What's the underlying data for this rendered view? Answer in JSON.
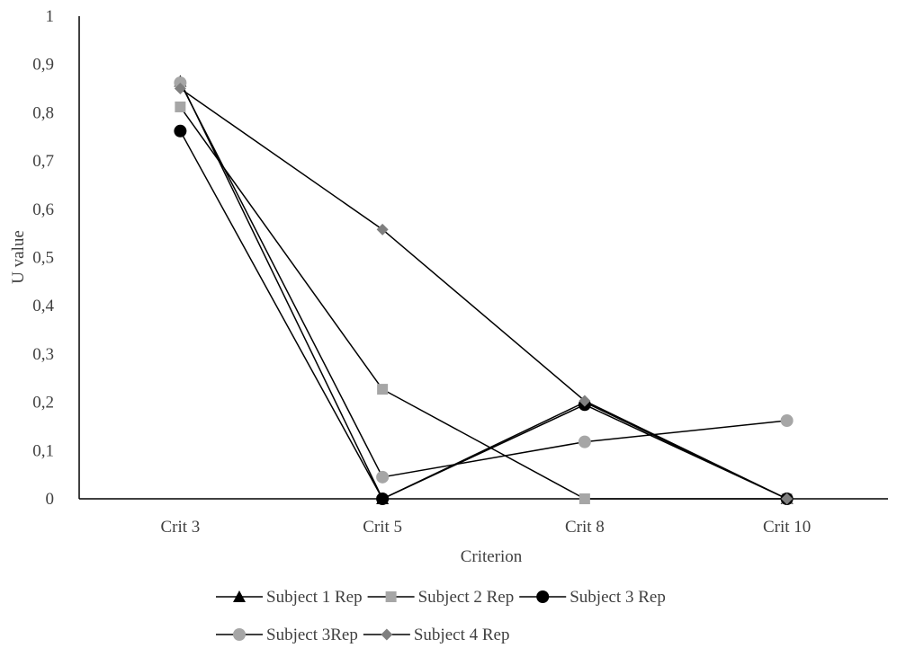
{
  "chart_data": {
    "type": "line",
    "xlabel": "Criterion",
    "ylabel": "U value",
    "categories": [
      "Crit 3",
      "Crit 5",
      "Crit 8",
      "Crit 10"
    ],
    "ylim": [
      0,
      1
    ],
    "yticks": [
      "0",
      "0,1",
      "0,2",
      "0,3",
      "0,4",
      "0,5",
      "0,6",
      "0,7",
      "0,8",
      "0,9",
      "1"
    ],
    "grid": false,
    "legend_position": "bottom",
    "series": [
      {
        "name": "Subject 1 Rep",
        "marker": "triangle",
        "color": "#000000",
        "values": [
          0.865,
          0.0,
          0.2,
          0.0
        ]
      },
      {
        "name": "Subject 2 Rep",
        "marker": "square",
        "color": "#a6a6a6",
        "values": [
          0.812,
          0.227,
          0.0,
          0.0
        ]
      },
      {
        "name": "Subject 3 Rep",
        "marker": "circle",
        "color": "#000000",
        "values": [
          0.762,
          0.0,
          0.195,
          0.0
        ]
      },
      {
        "name": "Subject 3Rep",
        "marker": "circle",
        "color": "#a6a6a6",
        "values": [
          0.862,
          0.045,
          0.118,
          0.162
        ]
      },
      {
        "name": "Subject 4 Rep",
        "marker": "diamond",
        "color": "#7f7f7f",
        "values": [
          0.85,
          0.558,
          0.203,
          0.0
        ]
      }
    ]
  }
}
